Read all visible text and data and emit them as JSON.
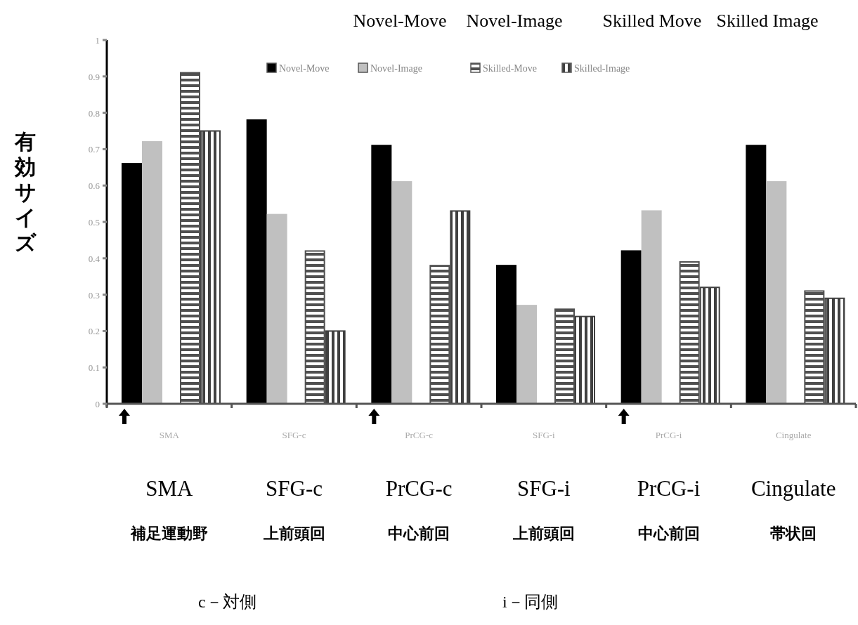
{
  "chart_data": {
    "type": "bar",
    "categories": [
      "SMA",
      "SFG-c",
      "PrCG-c",
      "SFG-i",
      "PrCG-i",
      "Cingulate"
    ],
    "series": [
      {
        "name": "Novel-Move",
        "color": "#000000",
        "values": [
          0.66,
          0.78,
          0.71,
          0.38,
          0.42,
          0.71
        ]
      },
      {
        "name": "Novel-Image",
        "color": "#c0c0c0",
        "values": [
          0.72,
          0.52,
          0.61,
          0.27,
          0.53,
          0.61
        ]
      },
      {
        "name": "Skilled-Move",
        "color": "#505050",
        "values": [
          0.91,
          0.42,
          0.38,
          0.26,
          0.39,
          0.31
        ]
      },
      {
        "name": "Skilled-Image",
        "color": "#404040",
        "values": [
          0.75,
          0.2,
          0.53,
          0.24,
          0.32,
          0.29
        ]
      }
    ],
    "ylabel": "有効サイズ",
    "ylim": [
      0,
      1
    ],
    "yticks": [
      0,
      0.1,
      0.2,
      0.3,
      0.4,
      0.5,
      0.6,
      0.7,
      0.8,
      0.9,
      1
    ],
    "legend": "top right",
    "grid": false,
    "annotations": [
      "Novel-Move",
      "Novel-Image",
      "Skilled Move",
      "Skilled Image",
      "補足運動野",
      "上前頭回",
      "中心前回",
      "上前頭回",
      "中心前回",
      "帯状回",
      "c－対側",
      "i－同側"
    ]
  }
}
